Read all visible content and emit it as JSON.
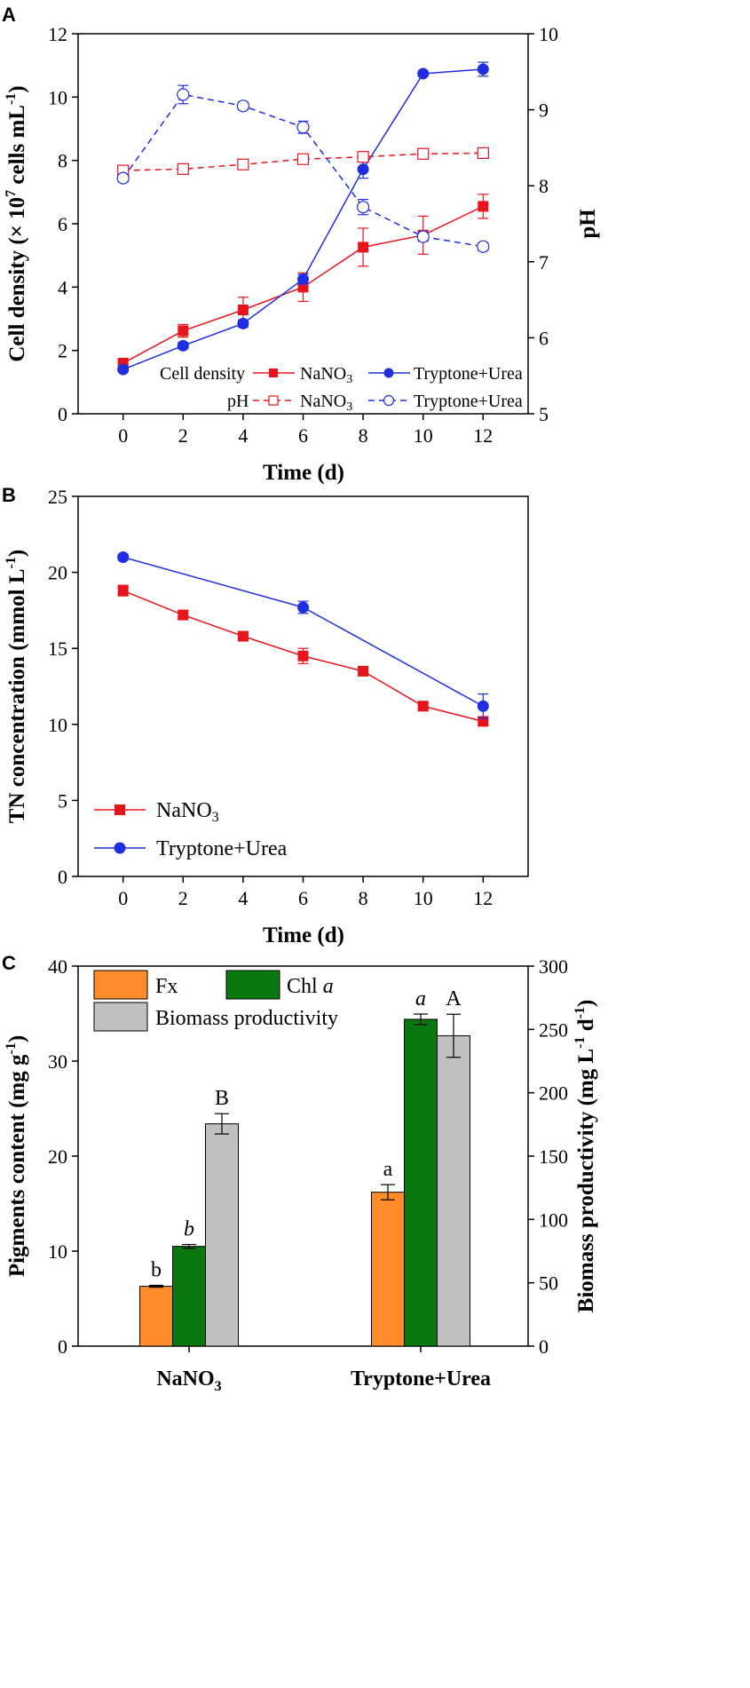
{
  "chart_data": [
    {
      "panel": "A",
      "type": "line",
      "x": [
        0,
        2,
        4,
        6,
        8,
        10,
        12
      ],
      "xlabel": "Time (d)",
      "xlim": [
        -1.5,
        13.5
      ],
      "xticks": [
        "0",
        "2",
        "4",
        "6",
        "8",
        "10",
        "12"
      ],
      "ylabel_left": "Cell density (× 10⁷ cells mL⁻¹)",
      "ylabel_right": "pH",
      "ylim_left": [
        0,
        12
      ],
      "ylim_right": [
        5,
        10
      ],
      "yticks_left": [
        "0",
        "2",
        "4",
        "6",
        "8",
        "10",
        "12"
      ],
      "yticks_right": [
        "5",
        "6",
        "7",
        "8",
        "9",
        "10"
      ],
      "legend": {
        "row1_label": "Cell density",
        "row2_label": "pH",
        "series_names": [
          "NaNO3",
          "Tryptone+Urea"
        ]
      },
      "series": [
        {
          "name": "NaNO3",
          "group": "Cell density",
          "axis": "left",
          "style": "solid",
          "marker": "square-filled",
          "color": "#e8141c",
          "values": [
            1.6,
            2.62,
            3.28,
            4.0,
            5.26,
            5.64,
            6.55
          ],
          "errors": [
            0.1,
            0.2,
            0.4,
            0.45,
            0.6,
            0.6,
            0.38
          ]
        },
        {
          "name": "Tryptone+Urea",
          "group": "Cell density",
          "axis": "left",
          "style": "solid",
          "marker": "circle-filled",
          "color": "#1f2ee0",
          "values": [
            1.4,
            2.15,
            2.85,
            4.25,
            7.72,
            10.74,
            10.88
          ],
          "errors": [
            0.08,
            0.1,
            0.12,
            0.15,
            0.28,
            0.08,
            0.22
          ]
        },
        {
          "name": "NaNO3",
          "group": "pH",
          "axis": "right",
          "style": "dashed",
          "marker": "square-open",
          "color": "#e8141c",
          "values": [
            8.2,
            8.22,
            8.28,
            8.35,
            8.38,
            8.42,
            8.43
          ],
          "errors": [
            0.05,
            0.04,
            0.03,
            0.04,
            0.03,
            0.03,
            0.03
          ]
        },
        {
          "name": "Tryptone+Urea",
          "group": "pH",
          "axis": "right",
          "style": "dashed",
          "marker": "circle-open",
          "color": "#1f2ee0",
          "values": [
            8.1,
            9.2,
            9.05,
            8.77,
            7.72,
            7.33,
            7.2
          ],
          "errors": [
            0.05,
            0.12,
            0.05,
            0.08,
            0.1,
            0.06,
            0.05
          ]
        }
      ]
    },
    {
      "panel": "B",
      "type": "line",
      "xlabel": "Time (d)",
      "ylabel": "TN concentration (mmol L⁻¹)",
      "xlim": [
        -1.5,
        13.5
      ],
      "ylim": [
        0,
        25
      ],
      "xticks": [
        "0",
        "2",
        "4",
        "6",
        "8",
        "10",
        "12"
      ],
      "yticks": [
        "0",
        "5",
        "10",
        "15",
        "20",
        "25"
      ],
      "series": [
        {
          "name": "NaNO3",
          "color": "#e8141c",
          "marker": "square-filled",
          "x": [
            0,
            2,
            4,
            6,
            8,
            10,
            12
          ],
          "values": [
            18.8,
            17.2,
            15.8,
            14.5,
            13.5,
            11.2,
            10.2
          ],
          "errors": [
            0.35,
            0.3,
            0.2,
            0.5,
            0.3,
            0.2,
            0.25
          ]
        },
        {
          "name": "Tryptone+Urea",
          "color": "#1f2ee0",
          "marker": "circle-filled",
          "x": [
            0,
            6,
            12
          ],
          "values": [
            21.0,
            17.7,
            11.2
          ],
          "errors": [
            0.2,
            0.4,
            0.8
          ]
        }
      ]
    },
    {
      "panel": "C",
      "type": "bar",
      "categories": [
        "NaNO3",
        "Tryptone+Urea"
      ],
      "ylabel_left": "Pigments content (mg g⁻¹)",
      "ylabel_right": "Biomass productivity (mg L⁻¹ d⁻¹)",
      "ylim_left": [
        0,
        40
      ],
      "ylim_right": [
        0,
        300
      ],
      "yticks_left": [
        "0",
        "10",
        "20",
        "30",
        "40"
      ],
      "yticks_right": [
        "0",
        "50",
        "100",
        "150",
        "200",
        "250",
        "300"
      ],
      "series": [
        {
          "name": "Fx",
          "axis": "left",
          "color": "#ff8c28",
          "values": [
            6.3,
            16.2
          ],
          "errors": [
            0.1,
            0.8
          ],
          "labels": [
            "b",
            "a"
          ],
          "label_italic": false
        },
        {
          "name": "Chl a",
          "axis": "left",
          "color": "#0a780f",
          "values": [
            10.5,
            34.4
          ],
          "errors": [
            0.2,
            0.55
          ],
          "labels": [
            "b",
            "a"
          ],
          "label_italic": true
        },
        {
          "name": "Biomass productivity",
          "axis": "right",
          "color": "#c0c0c0",
          "values": [
            175.5,
            245
          ],
          "errors": [
            8,
            17
          ],
          "labels": [
            "B",
            "A"
          ],
          "label_italic": false
        }
      ],
      "legend": {
        "fx": "Fx",
        "chl_name": "Chl ",
        "chl_italic": "a",
        "biomass": "Biomass productivity"
      }
    }
  ],
  "panels": {
    "a": {
      "letter": "A"
    },
    "b": {
      "letter": "B"
    },
    "c": {
      "letter": "C"
    }
  }
}
